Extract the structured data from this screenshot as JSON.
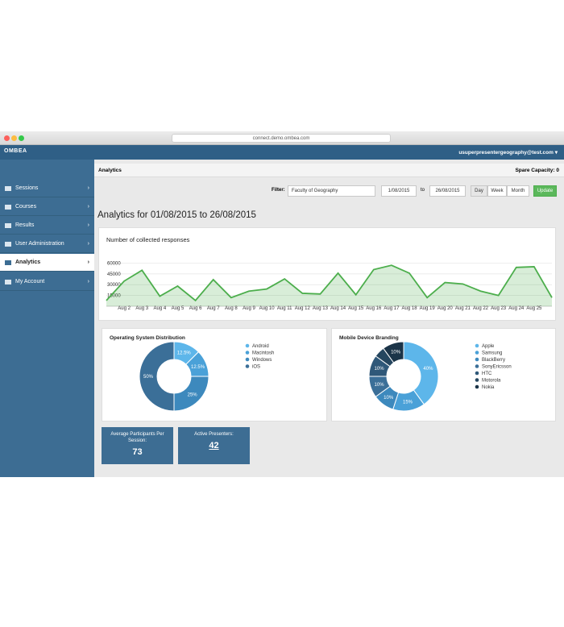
{
  "browser": {
    "url": "connect.demo.ombea.com"
  },
  "header": {
    "logo": "OMBEA",
    "user": "usuperpresentergeography@test.com"
  },
  "sidebar": {
    "items": [
      "Sessions",
      "Courses",
      "Results",
      "User Administration",
      "Analytics",
      "My Account"
    ],
    "active": 4
  },
  "breadcrumb": {
    "title": "Analytics",
    "capacity": "Spare Capacity: 0"
  },
  "filter": {
    "label": "Filter:",
    "faculty": "Faculty of Geography",
    "from": "1/08/2015",
    "to_label": "to",
    "to": "26/08/2015",
    "periods": [
      "Day",
      "Week",
      "Month"
    ],
    "update": "Update"
  },
  "heading": "Analytics for 01/08/2015 to 26/08/2015",
  "chart_data": [
    {
      "type": "line",
      "title": "Number of collected responses",
      "categories": [
        null,
        "Aug 2",
        "Aug 3",
        "Aug 4",
        "Aug 5",
        "Aug 6",
        "Aug 7",
        "Aug 8",
        "Aug 9",
        "Aug 10",
        "Aug 11",
        "Aug 12",
        "Aug 13",
        "Aug 14",
        "Aug 15",
        "Aug 16",
        "Aug 17",
        "Aug 18",
        "Aug 19",
        "Aug 20",
        "Aug 21",
        "Aug 22",
        "Aug 23",
        "Aug 24",
        "Aug 25",
        null
      ],
      "values": [
        8000,
        35000,
        50000,
        14000,
        28000,
        8000,
        37000,
        12000,
        21000,
        24000,
        38000,
        18000,
        17000,
        46000,
        16000,
        51000,
        57000,
        46000,
        12000,
        33000,
        31000,
        21000,
        15000,
        54000,
        55000,
        12000
      ],
      "color": "#4cae4c",
      "ylim": [
        0,
        65000
      ],
      "yticks": [
        15000,
        30000,
        45000,
        60000
      ],
      "grid": true
    },
    {
      "type": "pie",
      "title": "Operating System Distribution",
      "categories": [
        "Android",
        "Macintosh",
        "Windows",
        "iOS"
      ],
      "values": [
        12.5,
        12.5,
        25,
        50
      ],
      "value_labels": [
        "12.5%",
        "12.5%",
        "25%",
        "50%"
      ],
      "colors": [
        "#5db6ea",
        "#4aa1d8",
        "#3d89bd",
        "#3b6f98"
      ]
    },
    {
      "type": "pie",
      "title": "Mobile Device Branding",
      "categories": [
        "Apple",
        "Samsung",
        "BlackBerry",
        "SonyEricsson",
        "HTC",
        "Motorola",
        "Nokia"
      ],
      "values": [
        40,
        15,
        10,
        10,
        10,
        5,
        10
      ],
      "value_labels": [
        "40%",
        "15%",
        "10%",
        "10%",
        "10%",
        null,
        "10%"
      ],
      "colors": [
        "#5db6ea",
        "#4aa1d8",
        "#3d89bd",
        "#3b6f98",
        "#2f5879",
        "#25465f",
        "#1b3448"
      ]
    }
  ],
  "stats": [
    {
      "label": "Average Participants Per Session:",
      "value": 73
    },
    {
      "label": "Active Presenters:",
      "value": 42
    }
  ]
}
